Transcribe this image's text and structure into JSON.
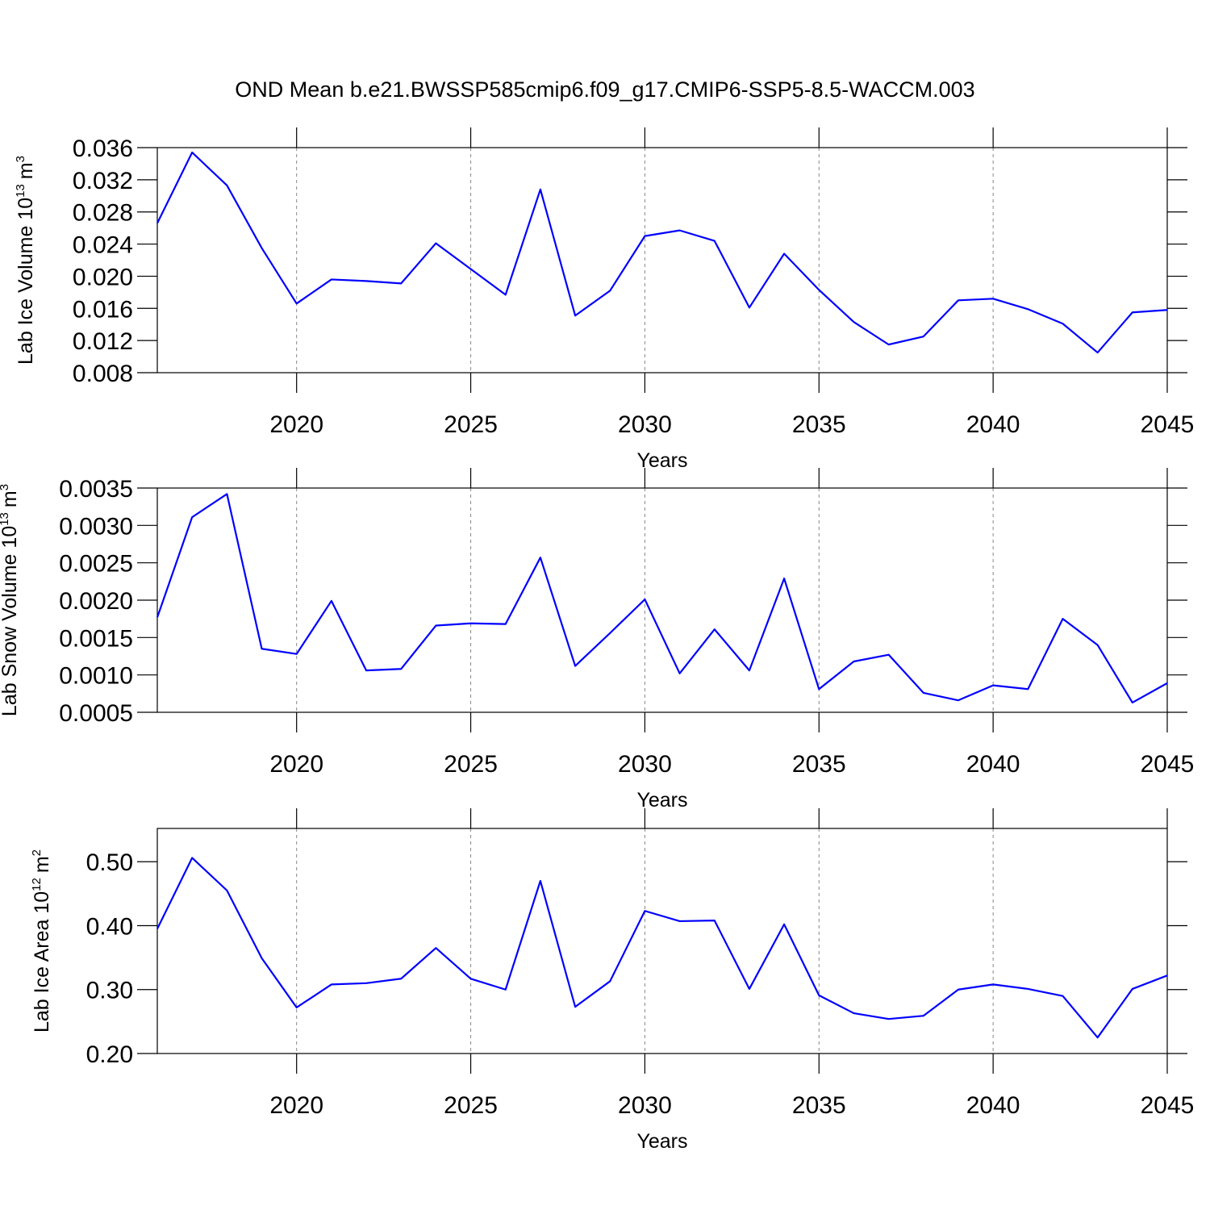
{
  "title": "OND Mean b.e21.BWSSP585cmip6.f09_g17.CMIP6-SSP5-8.5-WACCM.003",
  "chart_data": [
    {
      "type": "line",
      "x_label": "Years",
      "y_label": [
        "Lab Ice Volume 10",
        "13",
        "m",
        "3"
      ],
      "x": [
        2016,
        2017,
        2018,
        2019,
        2020,
        2021,
        2022,
        2023,
        2024,
        2025,
        2026,
        2027,
        2028,
        2029,
        2030,
        2031,
        2032,
        2033,
        2034,
        2035,
        2036,
        2037,
        2038,
        2039,
        2040,
        2041,
        2042,
        2043,
        2044,
        2045
      ],
      "series": [
        {
          "color": "#0000ff",
          "values": [
            0.0266,
            0.0354,
            0.0313,
            0.0235,
            0.0166,
            0.0196,
            0.0194,
            0.0191,
            0.0241,
            0.0209,
            0.0177,
            0.0308,
            0.0151,
            0.0182,
            0.025,
            0.0257,
            0.0244,
            0.0161,
            0.0228,
            0.0183,
            0.0143,
            0.0115,
            0.0125,
            0.017,
            0.0172,
            0.0159,
            0.0141,
            0.0105,
            0.0155,
            0.0158
          ]
        }
      ],
      "xlim": [
        2016,
        2045
      ],
      "xticks": [
        2020,
        2025,
        2030,
        2035,
        2040,
        2045
      ],
      "ylim": [
        0.008,
        0.036
      ],
      "yticks": [
        0.008,
        0.012,
        0.016,
        {
          "value": 0.02,
          "label": "0.020"
        },
        0.024,
        0.028,
        0.032,
        0.036
      ],
      "grid": "x"
    },
    {
      "type": "line",
      "x_label": "Years",
      "y_label": [
        "Lab Snow Volume 10",
        "13",
        "m",
        "3"
      ],
      "x": [
        2016,
        2017,
        2018,
        2019,
        2020,
        2021,
        2022,
        2023,
        2024,
        2025,
        2026,
        2027,
        2028,
        2029,
        2030,
        2031,
        2032,
        2033,
        2034,
        2035,
        2036,
        2037,
        2038,
        2039,
        2040,
        2041,
        2042,
        2043,
        2044,
        2045
      ],
      "series": [
        {
          "color": "#0000ff",
          "values": [
            0.00177,
            0.00311,
            0.00342,
            0.00135,
            0.00128,
            0.00199,
            0.00106,
            0.00108,
            0.00166,
            0.00169,
            0.00168,
            0.00257,
            0.00112,
            0.00156,
            0.00201,
            0.00102,
            0.00161,
            0.00106,
            0.00229,
            0.00081,
            0.00118,
            0.00127,
            0.00076,
            0.00066,
            0.00086,
            0.00081,
            0.00175,
            0.0014,
            0.00063,
            0.00089
          ]
        }
      ],
      "xlim": [
        2016,
        2045
      ],
      "xticks": [
        2020,
        2025,
        2030,
        2035,
        2040,
        2045
      ],
      "ylim": [
        0.0005,
        0.0035
      ],
      "yticks": [
        0.0005,
        {
          "value": 0.001,
          "label": "0.0010"
        },
        0.0015,
        {
          "value": 0.002,
          "label": "0.0020"
        },
        0.0025,
        {
          "value": 0.003,
          "label": "0.0030"
        },
        0.0035
      ],
      "grid": "x"
    },
    {
      "type": "line",
      "x_label": "Years",
      "y_label": [
        "Lab Ice Area 10",
        "12",
        "m",
        "2"
      ],
      "x": [
        2016,
        2017,
        2018,
        2019,
        2020,
        2021,
        2022,
        2023,
        2024,
        2025,
        2026,
        2027,
        2028,
        2029,
        2030,
        2031,
        2032,
        2033,
        2034,
        2035,
        2036,
        2037,
        2038,
        2039,
        2040,
        2041,
        2042,
        2043,
        2044,
        2045
      ],
      "series": [
        {
          "color": "#0000ff",
          "values": [
            0.395,
            0.506,
            0.455,
            0.349,
            0.272,
            0.308,
            0.31,
            0.317,
            0.365,
            0.317,
            0.3,
            0.47,
            0.273,
            0.313,
            0.423,
            0.407,
            0.408,
            0.301,
            0.402,
            0.291,
            0.263,
            0.254,
            0.259,
            0.3,
            0.308,
            0.301,
            0.29,
            0.225,
            0.301,
            0.322
          ]
        }
      ],
      "xlim": [
        2016,
        2045
      ],
      "xticks": [
        2020,
        2025,
        2030,
        2035,
        2040,
        2045
      ],
      "ylim": [
        0.2,
        0.552
      ],
      "yticks": [
        {
          "value": 0.2,
          "label": "0.20"
        },
        {
          "value": 0.3,
          "label": "0.30"
        },
        {
          "value": 0.4,
          "label": "0.40"
        },
        {
          "value": 0.5,
          "label": "0.50"
        }
      ],
      "grid": "x"
    }
  ]
}
